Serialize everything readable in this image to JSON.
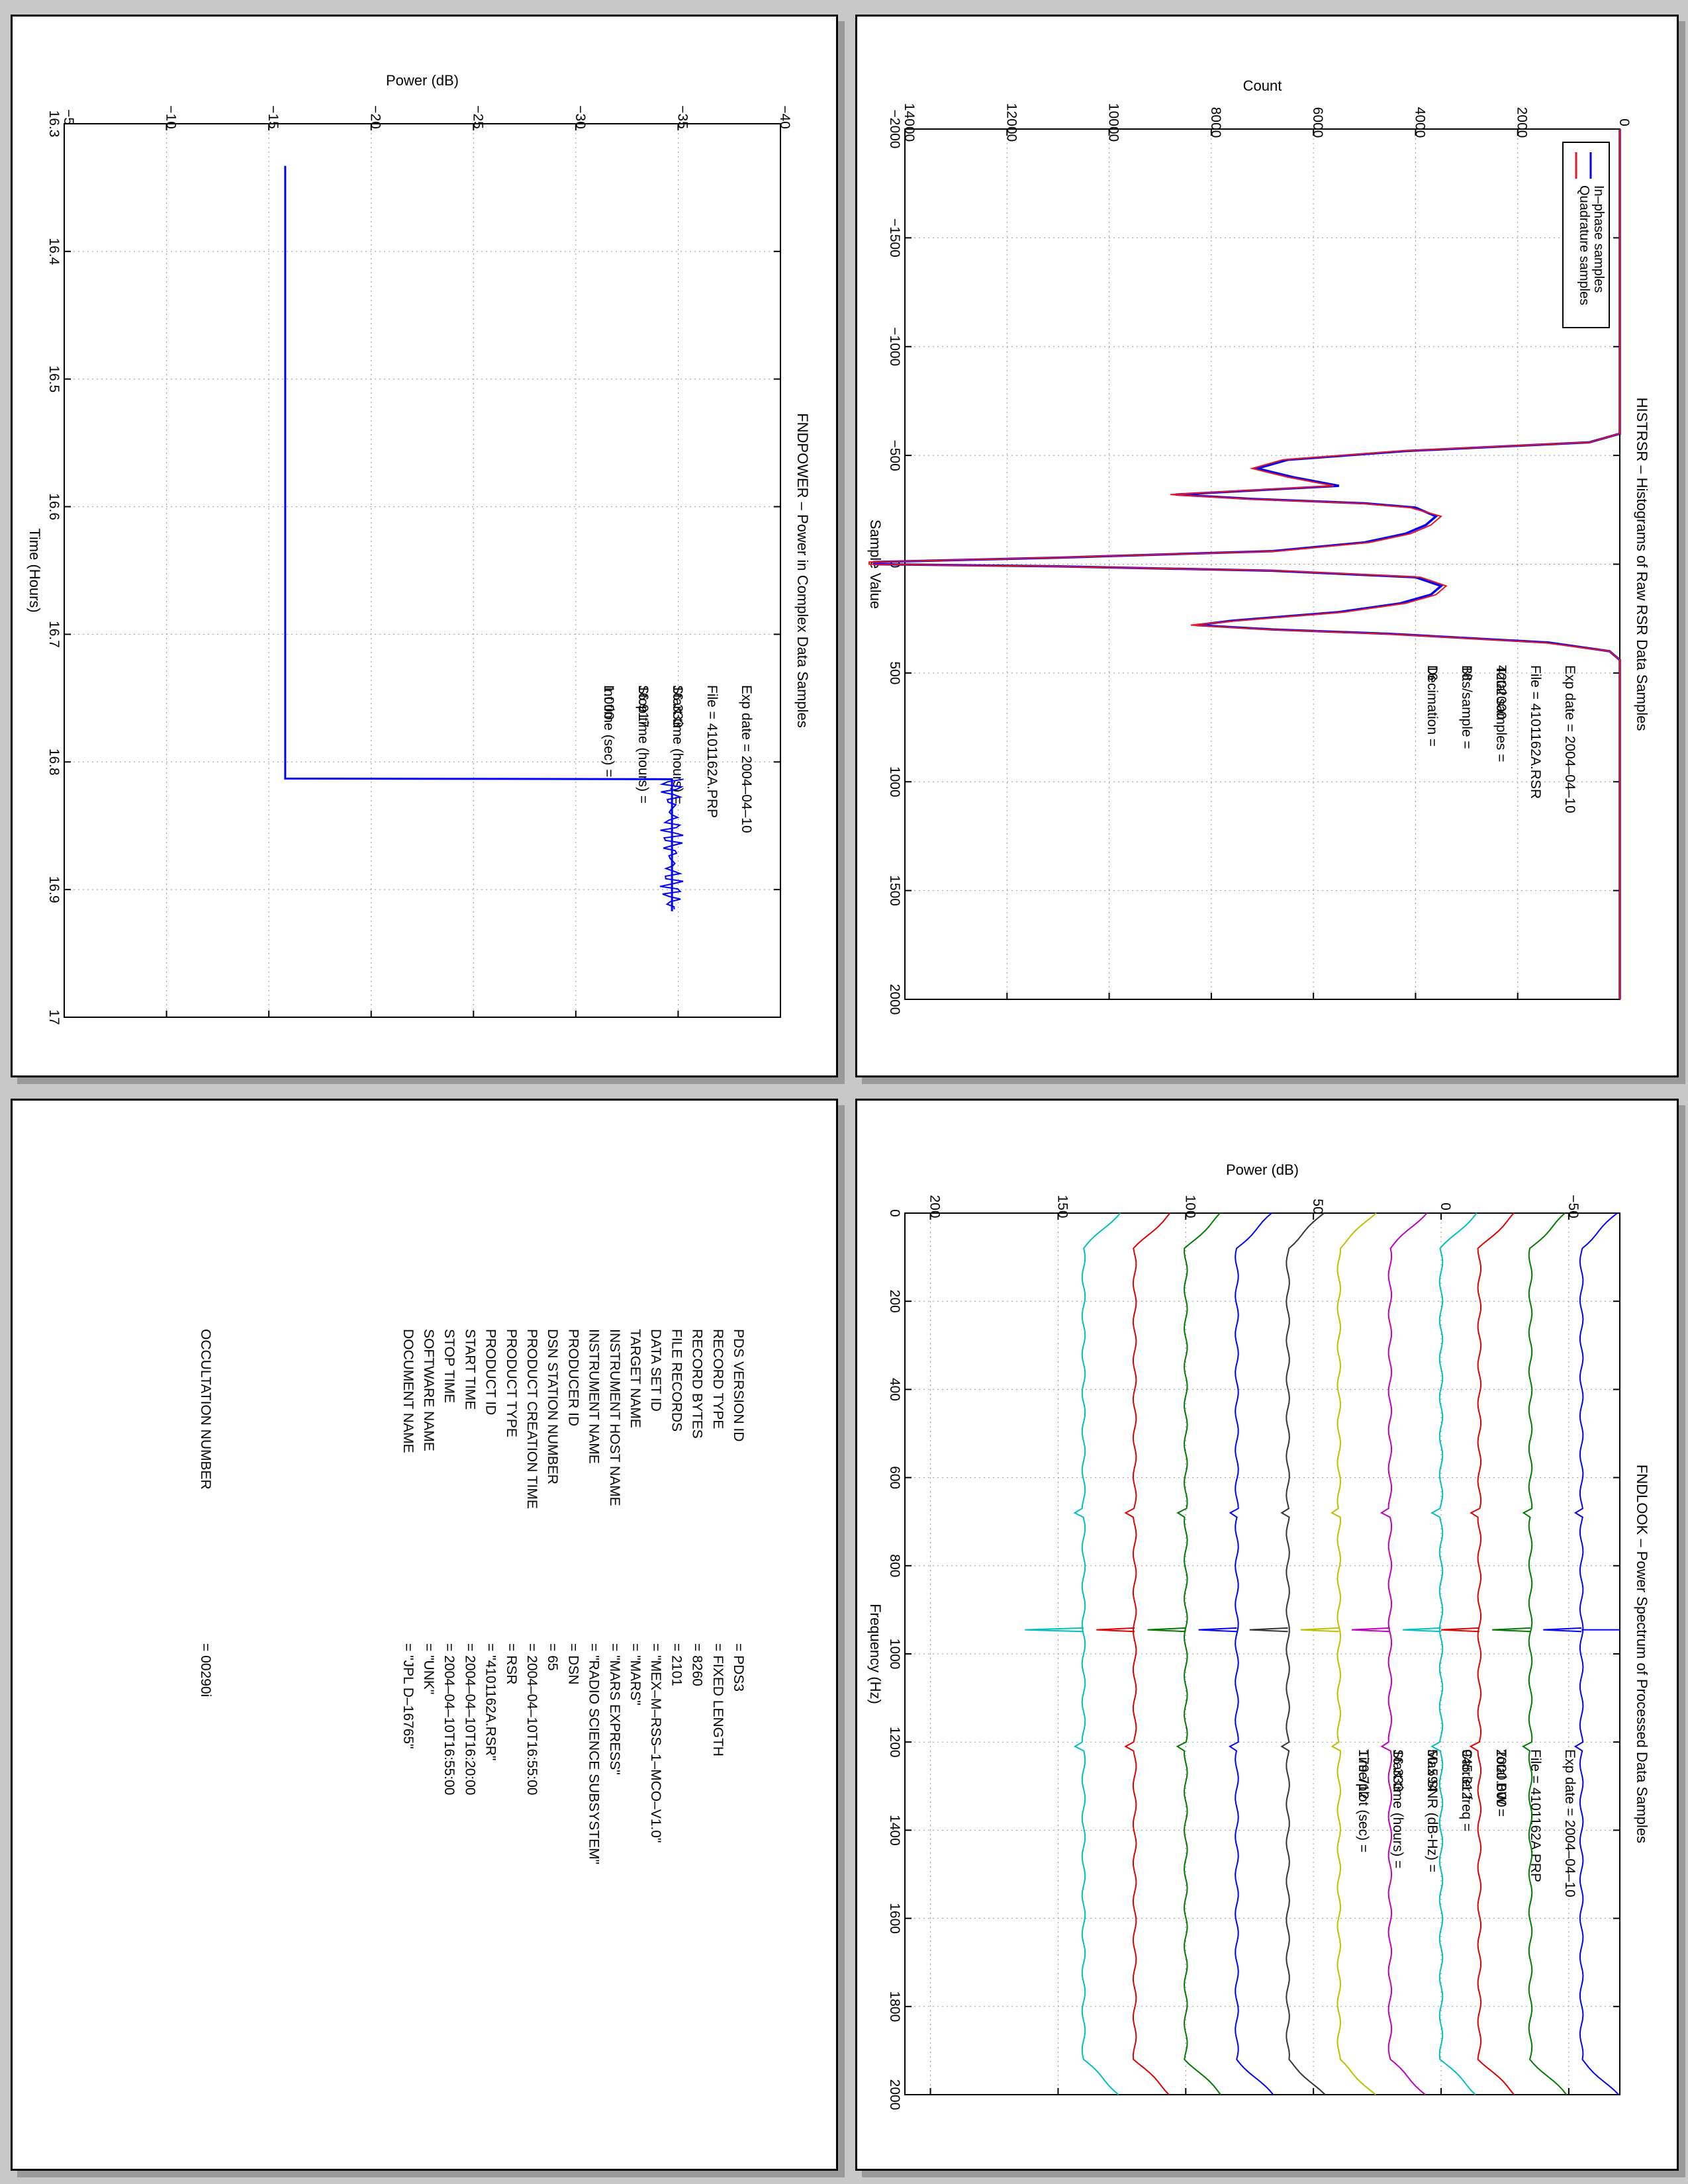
{
  "chart_data": [
    {
      "id": "histrsr",
      "type": "line",
      "title": "HISTRSR – Histograms of Raw RSR Data Samples",
      "xlabel": "Sample Value",
      "ylabel": "Count",
      "xlim": [
        -2000,
        2000
      ],
      "ylim": [
        0,
        14000
      ],
      "x_ticks": [
        "−2000",
        "−1500",
        "−1000",
        "−500",
        "0",
        "500",
        "1000",
        "1500",
        "2000"
      ],
      "y_ticks": [
        "0",
        "2000",
        "4000",
        "6000",
        "8000",
        "10000",
        "12000",
        "14000"
      ],
      "grid": true,
      "legend_position": "top-right",
      "legend": [
        "In–phase samples",
        "Quadrature samples"
      ],
      "info": [
        {
          "label": "Exp date = 2004–04–10",
          "value": ""
        },
        {
          "label": "File = 4101162A.RSR",
          "value": ""
        },
        {
          "label": "Total samples =",
          "value": "4202000"
        },
        {
          "label": "Bits/sample =",
          "value": "16"
        },
        {
          "label": "Decimation   =",
          "value": "16"
        }
      ],
      "series": [
        {
          "name": "In–phase samples",
          "color": "#0000ff",
          "x": [
            -2000,
            -600,
            -560,
            -520,
            -480,
            -440,
            -400,
            -360,
            -320,
            -300,
            -280,
            -260,
            -220,
            -180,
            -140,
            -100,
            -60,
            -30,
            -10,
            0,
            10,
            30,
            60,
            100,
            140,
            180,
            220,
            260,
            280,
            300,
            320,
            360,
            400,
            440,
            480,
            2000
          ],
          "y": [
            0,
            0,
            600,
            4200,
            6500,
            7100,
            6400,
            5500,
            8700,
            7200,
            5000,
            4000,
            3600,
            3800,
            4200,
            5000,
            6800,
            11000,
            14600,
            14600,
            11000,
            6800,
            4000,
            3500,
            3700,
            4300,
            5500,
            7600,
            8300,
            6800,
            4500,
            1400,
            200,
            0,
            0,
            0
          ]
        },
        {
          "name": "Quadrature samples",
          "color": "#e8141e",
          "x": [
            -2000,
            -600,
            -560,
            -520,
            -480,
            -440,
            -400,
            -360,
            -320,
            -300,
            -280,
            -260,
            -220,
            -180,
            -140,
            -100,
            -60,
            -30,
            -10,
            0,
            10,
            30,
            60,
            100,
            140,
            180,
            220,
            260,
            280,
            300,
            320,
            360,
            400,
            440,
            480,
            2000
          ],
          "y": [
            0,
            0,
            600,
            4300,
            6600,
            7200,
            6500,
            5600,
            8800,
            7300,
            5100,
            4100,
            3500,
            3700,
            4100,
            4900,
            6700,
            11100,
            14700,
            14700,
            11100,
            6700,
            3900,
            3400,
            3600,
            4200,
            5400,
            7500,
            8400,
            6900,
            4600,
            1500,
            200,
            0,
            0,
            0
          ]
        }
      ]
    },
    {
      "id": "fndpower",
      "type": "line",
      "title": "FNDPOWER – Power in Complex Data Samples",
      "xlabel": "Time (Hours)",
      "ylabel": "Power (dB)",
      "xlim": [
        16.3,
        17.0
      ],
      "ylim": [
        -40,
        -5
      ],
      "x_ticks": [
        "16.3",
        "16.4",
        "16.5",
        "16.6",
        "16.7",
        "16.8",
        "16.9",
        "17"
      ],
      "y_ticks": [
        "−40",
        "−35",
        "−30",
        "−25",
        "−20",
        "−15",
        "−10",
        "−5"
      ],
      "grid": true,
      "info": [
        {
          "label": "Exp date = 2004–04–10",
          "value": ""
        },
        {
          "label": "File = 4101162A.PRP",
          "value": ""
        },
        {
          "label": "Start time (hours) =",
          "value": "16.333"
        },
        {
          "label": "Stop time (hours) =",
          "value": "16.917"
        },
        {
          "label": "Int time (sec) =",
          "value": "1.000"
        }
      ],
      "series": [
        {
          "name": "",
          "color": "#0000ff",
          "x": [
            16.333,
            16.4,
            16.5,
            16.6,
            16.7,
            16.78,
            16.813,
            16.8135,
            16.85,
            16.9,
            16.917
          ],
          "y": [
            -15.8,
            -15.8,
            -15.8,
            -15.8,
            -15.8,
            -15.8,
            -15.8,
            -34.7,
            -34.7,
            -34.7,
            -34.7
          ]
        }
      ]
    },
    {
      "id": "fndlook",
      "type": "line",
      "title": "FNDLOOK – Power Spectrum of Processed Data Samples",
      "xlabel": "Frequency (Hz)",
      "ylabel": "Power (dB)",
      "xlim": [
        0,
        2000
      ],
      "ylim": [
        -70,
        210
      ],
      "x_ticks": [
        "0",
        "200",
        "400",
        "600",
        "800",
        "1000",
        "1200",
        "1400",
        "1600",
        "1800",
        "2000"
      ],
      "y_ticks": [
        "−50",
        "0",
        "50",
        "100",
        "150",
        "200"
      ],
      "grid": true,
      "info": [
        {
          "label": "Exp date = 2004–04–10",
          "value": ""
        },
        {
          "label": "File = 4101162A.PRP",
          "value": ""
        },
        {
          "label": "Total BW =",
          "value": "2000.000"
        },
        {
          "label": "Carrier freq =",
          "value": "945.312"
        },
        {
          "label": "Max SNR (dB-Hz) =",
          "value": "50.594"
        },
        {
          "label": "Start time (hours) =",
          "value": "16.333"
        },
        {
          "label": "Time/plot (sec) =",
          "value": "179.712"
        }
      ],
      "trace_colors": [
        "#0000ff",
        "#007a00",
        "#e00000",
        "#00bfbf",
        "#bf00bf",
        "#bfbf00",
        "#333333",
        "#0000ff",
        "#007a00",
        "#e00000",
        "#00bfbf"
      ],
      "trace_offsets_db": [
        -55,
        -35,
        -15,
        0,
        20,
        40,
        60,
        80,
        100,
        120,
        140
      ],
      "carrier_hz": 945.312
    }
  ],
  "label_table": {
    "rows": [
      {
        "key": "PDS VERSION ID",
        "value": "= PDS3"
      },
      {
        "key": "RECORD TYPE",
        "value": "= FIXED LENGTH"
      },
      {
        "key": "RECORD BYTES",
        "value": "= 8260"
      },
      {
        "key": "FILE RECORDS",
        "value": "= 2101"
      },
      {
        "key": "DATA SET ID",
        "value": "= \"MEX–M–RSS–1–MCO–V1.0\""
      },
      {
        "key": "TARGET NAME",
        "value": "= \"MARS\""
      },
      {
        "key": "INSTRUMENT HOST NAME",
        "value": "= \"MARS EXPRESS\""
      },
      {
        "key": "INSTRUMENT NAME",
        "value": "= \"RADIO SCIENCE SUBSYSTEM\""
      },
      {
        "key": "PRODUCER ID",
        "value": "= DSN"
      },
      {
        "key": "DSN STATION NUMBER",
        "value": "= 65"
      },
      {
        "key": "PRODUCT CREATION TIME",
        "value": "= 2004–04–10T16:55:00"
      },
      {
        "key": "PRODUCT TYPE",
        "value": "= RSR"
      },
      {
        "key": "PRODUCT ID",
        "value": "= \"4101162A.RSR\""
      },
      {
        "key": "START TIME",
        "value": "= 2004–04–10T16:20:00"
      },
      {
        "key": "STOP TIME",
        "value": "= 2004–04–10T16:55:00"
      },
      {
        "key": "SOFTWARE NAME",
        "value": "= \"UNK\""
      },
      {
        "key": "DOCUMENT NAME",
        "value": "= \"JPL D–16765\""
      }
    ],
    "occultation": {
      "key": "OCCULTATION NUMBER",
      "value": "= 00290i"
    }
  }
}
